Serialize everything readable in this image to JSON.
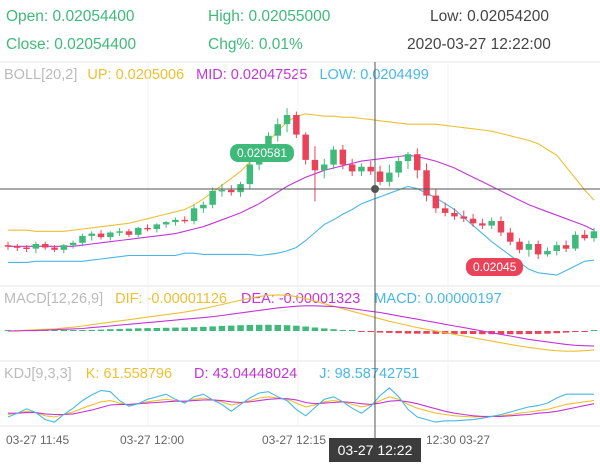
{
  "header": {
    "open_label": "Open:",
    "open": "0.02054400",
    "high_label": "High:",
    "high": "0.02055000",
    "low_label": "Low:",
    "low": "0.02054200",
    "close_label": "Close:",
    "close": "0.02054400",
    "chg_label": "Chg%:",
    "chg": "0.01%",
    "datetime": "2020-03-27 12:22:00"
  },
  "boll": {
    "name": "BOLL[20,2]",
    "up": "UP: 0.0205006",
    "mid": "MID: 0.02047525",
    "low": "LOW: 0.0204499"
  },
  "macd": {
    "name": "MACD[12,26,9]",
    "dif": "DIF: -0.00001126",
    "dea": "DEA: -0.00001323",
    "macd": "MACD: 0.00000197"
  },
  "kdj": {
    "name": "KDJ[9,3,3]",
    "k": "K: 61.558796",
    "d": "D: 43.04448024",
    "j": "J: 98.58742751"
  },
  "markers": {
    "high": "0.020581",
    "low": "0.02045"
  },
  "crosshair": {
    "time": "03-27 12:22"
  },
  "colors": {
    "up": "#3fba7a",
    "down": "#e9435a",
    "upper_band": "#ecc032",
    "mid_band": "#c236d8",
    "lower_band": "#49b7e6",
    "dif": "#ecc032",
    "dea": "#c236d8",
    "k": "#ecc032",
    "d": "#c236d8",
    "j": "#49b7e6"
  },
  "chart_data": {
    "type": "candlestick",
    "x": [
      "03-27 11:45",
      "03-27 12:00",
      "03-27 12:15",
      "03-27 12:30"
    ],
    "candles": [
      {
        "o": 0.020462,
        "h": 0.020465,
        "l": 0.020458,
        "c": 0.020461
      },
      {
        "o": 0.020461,
        "h": 0.020463,
        "l": 0.020457,
        "c": 0.02046
      },
      {
        "o": 0.02046,
        "h": 0.020462,
        "l": 0.020456,
        "c": 0.020459
      },
      {
        "o": 0.020459,
        "h": 0.020465,
        "l": 0.020455,
        "c": 0.020463
      },
      {
        "o": 0.020463,
        "h": 0.020465,
        "l": 0.020458,
        "c": 0.02046
      },
      {
        "o": 0.02046,
        "h": 0.020462,
        "l": 0.020456,
        "c": 0.020458
      },
      {
        "o": 0.020458,
        "h": 0.020463,
        "l": 0.020455,
        "c": 0.020462
      },
      {
        "o": 0.020462,
        "h": 0.020466,
        "l": 0.020459,
        "c": 0.020464
      },
      {
        "o": 0.020464,
        "h": 0.020472,
        "l": 0.020461,
        "c": 0.02047
      },
      {
        "o": 0.02047,
        "h": 0.020474,
        "l": 0.020466,
        "c": 0.020472
      },
      {
        "o": 0.020472,
        "h": 0.020475,
        "l": 0.020467,
        "c": 0.020469
      },
      {
        "o": 0.020469,
        "h": 0.020474,
        "l": 0.020466,
        "c": 0.020473
      },
      {
        "o": 0.020473,
        "h": 0.020477,
        "l": 0.02047,
        "c": 0.020474
      },
      {
        "o": 0.020474,
        "h": 0.020476,
        "l": 0.020469,
        "c": 0.020471
      },
      {
        "o": 0.020471,
        "h": 0.020478,
        "l": 0.020469,
        "c": 0.020477
      },
      {
        "o": 0.020477,
        "h": 0.02048,
        "l": 0.020474,
        "c": 0.020476
      },
      {
        "o": 0.020476,
        "h": 0.020481,
        "l": 0.020473,
        "c": 0.02048
      },
      {
        "o": 0.02048,
        "h": 0.020483,
        "l": 0.020477,
        "c": 0.020482
      },
      {
        "o": 0.020482,
        "h": 0.020486,
        "l": 0.020479,
        "c": 0.020484
      },
      {
        "o": 0.020484,
        "h": 0.020487,
        "l": 0.020481,
        "c": 0.020483
      },
      {
        "o": 0.020483,
        "h": 0.020497,
        "l": 0.02048,
        "c": 0.020494
      },
      {
        "o": 0.020494,
        "h": 0.0205,
        "l": 0.02049,
        "c": 0.020497
      },
      {
        "o": 0.020497,
        "h": 0.020512,
        "l": 0.020494,
        "c": 0.020509
      },
      {
        "o": 0.020509,
        "h": 0.020515,
        "l": 0.020504,
        "c": 0.02051
      },
      {
        "o": 0.02051,
        "h": 0.020514,
        "l": 0.020505,
        "c": 0.020508
      },
      {
        "o": 0.020508,
        "h": 0.020517,
        "l": 0.020504,
        "c": 0.020515
      },
      {
        "o": 0.020515,
        "h": 0.020537,
        "l": 0.020511,
        "c": 0.020532
      },
      {
        "o": 0.020532,
        "h": 0.020548,
        "l": 0.020527,
        "c": 0.020545
      },
      {
        "o": 0.020545,
        "h": 0.02056,
        "l": 0.02054,
        "c": 0.020557
      },
      {
        "o": 0.020557,
        "h": 0.020572,
        "l": 0.020552,
        "c": 0.020567
      },
      {
        "o": 0.020567,
        "h": 0.020581,
        "l": 0.02056,
        "c": 0.020575
      },
      {
        "o": 0.020575,
        "h": 0.020578,
        "l": 0.020555,
        "c": 0.020558
      },
      {
        "o": 0.020558,
        "h": 0.02056,
        "l": 0.020532,
        "c": 0.020536
      },
      {
        "o": 0.020536,
        "h": 0.020548,
        "l": 0.0205,
        "c": 0.020527
      },
      {
        "o": 0.020527,
        "h": 0.020537,
        "l": 0.02052,
        "c": 0.020532
      },
      {
        "o": 0.020532,
        "h": 0.020548,
        "l": 0.020528,
        "c": 0.020545
      },
      {
        "o": 0.020545,
        "h": 0.020549,
        "l": 0.020528,
        "c": 0.020532
      },
      {
        "o": 0.020532,
        "h": 0.020537,
        "l": 0.020522,
        "c": 0.020526
      },
      {
        "o": 0.020526,
        "h": 0.020533,
        "l": 0.020522,
        "c": 0.02053
      },
      {
        "o": 0.02053,
        "h": 0.020535,
        "l": 0.020523,
        "c": 0.020526
      },
      {
        "o": 0.020526,
        "h": 0.020531,
        "l": 0.020514,
        "c": 0.020517
      },
      {
        "o": 0.020517,
        "h": 0.020532,
        "l": 0.020513,
        "c": 0.020525
      },
      {
        "o": 0.020525,
        "h": 0.020539,
        "l": 0.020521,
        "c": 0.020535
      },
      {
        "o": 0.020535,
        "h": 0.020543,
        "l": 0.020528,
        "c": 0.020541
      },
      {
        "o": 0.020541,
        "h": 0.020546,
        "l": 0.02052,
        "c": 0.020527
      },
      {
        "o": 0.020527,
        "h": 0.020533,
        "l": 0.0205,
        "c": 0.020505
      },
      {
        "o": 0.020505,
        "h": 0.020511,
        "l": 0.02049,
        "c": 0.020494
      },
      {
        "o": 0.020494,
        "h": 0.020499,
        "l": 0.020487,
        "c": 0.02049
      },
      {
        "o": 0.02049,
        "h": 0.020494,
        "l": 0.020484,
        "c": 0.020487
      },
      {
        "o": 0.020487,
        "h": 0.020492,
        "l": 0.020482,
        "c": 0.020485
      },
      {
        "o": 0.020485,
        "h": 0.020489,
        "l": 0.020478,
        "c": 0.020481
      },
      {
        "o": 0.020481,
        "h": 0.020485,
        "l": 0.020476,
        "c": 0.020479
      },
      {
        "o": 0.020479,
        "h": 0.020486,
        "l": 0.020476,
        "c": 0.020483
      },
      {
        "o": 0.020483,
        "h": 0.020487,
        "l": 0.02047,
        "c": 0.020473
      },
      {
        "o": 0.020473,
        "h": 0.020477,
        "l": 0.020462,
        "c": 0.020465
      },
      {
        "o": 0.020465,
        "h": 0.020468,
        "l": 0.020455,
        "c": 0.020458
      },
      {
        "o": 0.020458,
        "h": 0.020466,
        "l": 0.020452,
        "c": 0.020463
      },
      {
        "o": 0.020463,
        "h": 0.020466,
        "l": 0.02045,
        "c": 0.020454
      },
      {
        "o": 0.020454,
        "h": 0.02046,
        "l": 0.020452,
        "c": 0.020457
      },
      {
        "o": 0.020457,
        "h": 0.020465,
        "l": 0.020453,
        "c": 0.020462
      },
      {
        "o": 0.020462,
        "h": 0.020466,
        "l": 0.020456,
        "c": 0.020459
      },
      {
        "o": 0.020459,
        "h": 0.020474,
        "l": 0.020457,
        "c": 0.020471
      },
      {
        "o": 0.020471,
        "h": 0.020475,
        "l": 0.020466,
        "c": 0.020468
      },
      {
        "o": 0.020468,
        "h": 0.020477,
        "l": 0.020465,
        "c": 0.020474
      }
    ],
    "boll": {
      "upper": [
        0.020475,
        0.020475,
        0.020475,
        0.020474,
        0.020474,
        0.020474,
        0.020474,
        0.020475,
        0.020476,
        0.020477,
        0.020478,
        0.020479,
        0.02048,
        0.020481,
        0.020483,
        0.020485,
        0.020487,
        0.020489,
        0.020491,
        0.020493,
        0.020497,
        0.020502,
        0.020508,
        0.020514,
        0.02052,
        0.020526,
        0.020534,
        0.020543,
        0.020552,
        0.020561,
        0.020569,
        0.020574,
        0.020576,
        0.020575,
        0.020574,
        0.020574,
        0.020573,
        0.020573,
        0.020572,
        0.020571,
        0.02057,
        0.020569,
        0.020568,
        0.020567,
        0.020567,
        0.020567,
        0.020567,
        0.020566,
        0.020565,
        0.020564,
        0.020563,
        0.020562,
        0.020561,
        0.020559,
        0.020557,
        0.020555,
        0.020553,
        0.02055,
        0.020545,
        0.02054,
        0.02053,
        0.02052,
        0.02051,
        0.020501
      ],
      "mid": [
        0.020461,
        0.020461,
        0.020461,
        0.020461,
        0.020461,
        0.020461,
        0.020461,
        0.020461,
        0.020462,
        0.020463,
        0.020464,
        0.020465,
        0.020466,
        0.020467,
        0.020468,
        0.020469,
        0.02047,
        0.020471,
        0.020472,
        0.020474,
        0.020476,
        0.020478,
        0.020481,
        0.020484,
        0.020487,
        0.02049,
        0.020494,
        0.020498,
        0.020503,
        0.020508,
        0.020513,
        0.020517,
        0.020521,
        0.020524,
        0.020527,
        0.020529,
        0.020531,
        0.020533,
        0.020535,
        0.020536,
        0.020537,
        0.020538,
        0.020539,
        0.02054,
        0.020539,
        0.020537,
        0.020535,
        0.020532,
        0.020529,
        0.020525,
        0.020521,
        0.020517,
        0.020513,
        0.020509,
        0.020505,
        0.020501,
        0.020497,
        0.020494,
        0.020491,
        0.020488,
        0.020485,
        0.020482,
        0.020479,
        0.020475
      ],
      "lower": [
        0.020447,
        0.020447,
        0.020447,
        0.020448,
        0.020448,
        0.020448,
        0.020448,
        0.020448,
        0.020448,
        0.020449,
        0.02045,
        0.020451,
        0.020452,
        0.020453,
        0.020453,
        0.020453,
        0.020453,
        0.020453,
        0.020453,
        0.020455,
        0.020455,
        0.020454,
        0.020454,
        0.020454,
        0.020454,
        0.020454,
        0.020454,
        0.020453,
        0.020454,
        0.020455,
        0.020457,
        0.02046,
        0.020466,
        0.020473,
        0.02048,
        0.020484,
        0.020489,
        0.020493,
        0.020498,
        0.020501,
        0.020504,
        0.020507,
        0.02051,
        0.020513,
        0.020511,
        0.020507,
        0.020503,
        0.020498,
        0.020493,
        0.020486,
        0.020479,
        0.020472,
        0.020465,
        0.020459,
        0.020453,
        0.020447,
        0.020441,
        0.020438,
        0.020437,
        0.020436,
        0.02044,
        0.020444,
        0.020448,
        0.020449
      ]
    },
    "macd_hist": [
      0.1,
      0.1,
      0.1,
      0.1,
      0.1,
      0.1,
      0.2,
      0.3,
      0.5,
      0.7,
      0.9,
      1.1,
      1.3,
      1.5,
      1.7,
      1.8,
      1.9,
      2.0,
      2.1,
      2.2,
      2.4,
      2.6,
      2.9,
      3.2,
      3.4,
      3.6,
      3.8,
      3.9,
      3.9,
      3.8,
      3.6,
      3.3,
      2.8,
      2.2,
      1.6,
      1.1,
      0.6,
      0.2,
      -0.3,
      -0.7,
      -1.0,
      -1.2,
      -1.4,
      -1.6,
      -1.7,
      -1.7,
      -1.8,
      -1.8,
      -1.8,
      -1.9,
      -1.9,
      -2.0,
      -2.0,
      -2.0,
      -2.0,
      -2.0,
      -1.9,
      -1.8,
      -1.6,
      -1.4,
      -1.0,
      -0.6,
      -0.2,
      0.2
    ],
    "dif": [
      0,
      0.1,
      0.2,
      0.3,
      0.4,
      0.5,
      0.7,
      0.9,
      1.2,
      1.5,
      1.8,
      2.1,
      2.4,
      2.7,
      3.0,
      3.3,
      3.6,
      3.9,
      4.2,
      4.5,
      4.9,
      5.3,
      5.8,
      6.3,
      6.8,
      7.3,
      7.8,
      8.2,
      8.5,
      8.6,
      8.5,
      8.2,
      7.7,
      7.1,
      6.5,
      5.9,
      5.3,
      4.7,
      4.1,
      3.5,
      2.9,
      2.3,
      1.8,
      1.3,
      0.8,
      0.4,
      0.0,
      -0.4,
      -0.8,
      -1.2,
      -1.6,
      -2.0,
      -2.4,
      -2.8,
      -3.2,
      -3.6,
      -3.9,
      -4.2,
      -4.5,
      -4.7,
      -4.8,
      -4.8,
      -4.7,
      -4.5
    ],
    "dea": [
      0,
      0,
      0.1,
      0.1,
      0.2,
      0.3,
      0.4,
      0.5,
      0.6,
      0.8,
      1.0,
      1.2,
      1.4,
      1.6,
      1.8,
      2.0,
      2.2,
      2.4,
      2.6,
      2.8,
      3.0,
      3.2,
      3.4,
      3.7,
      4.0,
      4.3,
      4.6,
      4.9,
      5.2,
      5.5,
      5.7,
      5.9,
      6.0,
      6.0,
      5.9,
      5.8,
      5.6,
      5.3,
      5.0,
      4.7,
      4.4,
      4.0,
      3.6,
      3.2,
      2.8,
      2.4,
      2.0,
      1.6,
      1.2,
      0.8,
      0.4,
      0.0,
      -0.4,
      -0.8,
      -1.2,
      -1.6,
      -2.0,
      -2.3,
      -2.6,
      -2.9,
      -3.2,
      -3.4,
      -3.5,
      -3.6
    ],
    "kdj": {
      "k": [
        40,
        42,
        45,
        43,
        38,
        36,
        40,
        44,
        50,
        55,
        60,
        62,
        58,
        55,
        57,
        60,
        62,
        64,
        62,
        60,
        64,
        66,
        63,
        60,
        55,
        58,
        62,
        66,
        68,
        66,
        64,
        58,
        52,
        55,
        60,
        62,
        60,
        56,
        52,
        55,
        62,
        68,
        64,
        56,
        50,
        46,
        42,
        40,
        38,
        37,
        36,
        36,
        37,
        38,
        40,
        42,
        44,
        46,
        48,
        52,
        56,
        58,
        60,
        62
      ],
      "d": [
        42,
        42,
        43,
        43,
        41,
        40,
        40,
        41,
        44,
        47,
        51,
        55,
        56,
        56,
        57,
        58,
        59,
        60,
        61,
        61,
        62,
        63,
        63,
        62,
        60,
        59,
        60,
        62,
        64,
        65,
        65,
        63,
        59,
        57,
        58,
        59,
        60,
        59,
        57,
        56,
        58,
        61,
        62,
        60,
        57,
        53,
        49,
        45,
        42,
        40,
        38,
        37,
        37,
        37,
        38,
        39,
        40,
        42,
        43,
        45,
        48,
        51,
        54,
        57
      ],
      "j": [
        36,
        42,
        49,
        43,
        32,
        28,
        40,
        50,
        62,
        71,
        78,
        76,
        62,
        53,
        57,
        64,
        68,
        72,
        64,
        58,
        68,
        72,
        63,
        56,
        45,
        56,
        66,
        74,
        76,
        68,
        62,
        48,
        38,
        51,
        64,
        68,
        60,
        50,
        42,
        53,
        70,
        82,
        68,
        48,
        36,
        32,
        28,
        30,
        30,
        31,
        32,
        34,
        37,
        40,
        44,
        48,
        52,
        54,
        58,
        66,
        72,
        72,
        72,
        72
      ]
    },
    "y_range_price": [
      0.02043,
      0.020595
    ]
  }
}
